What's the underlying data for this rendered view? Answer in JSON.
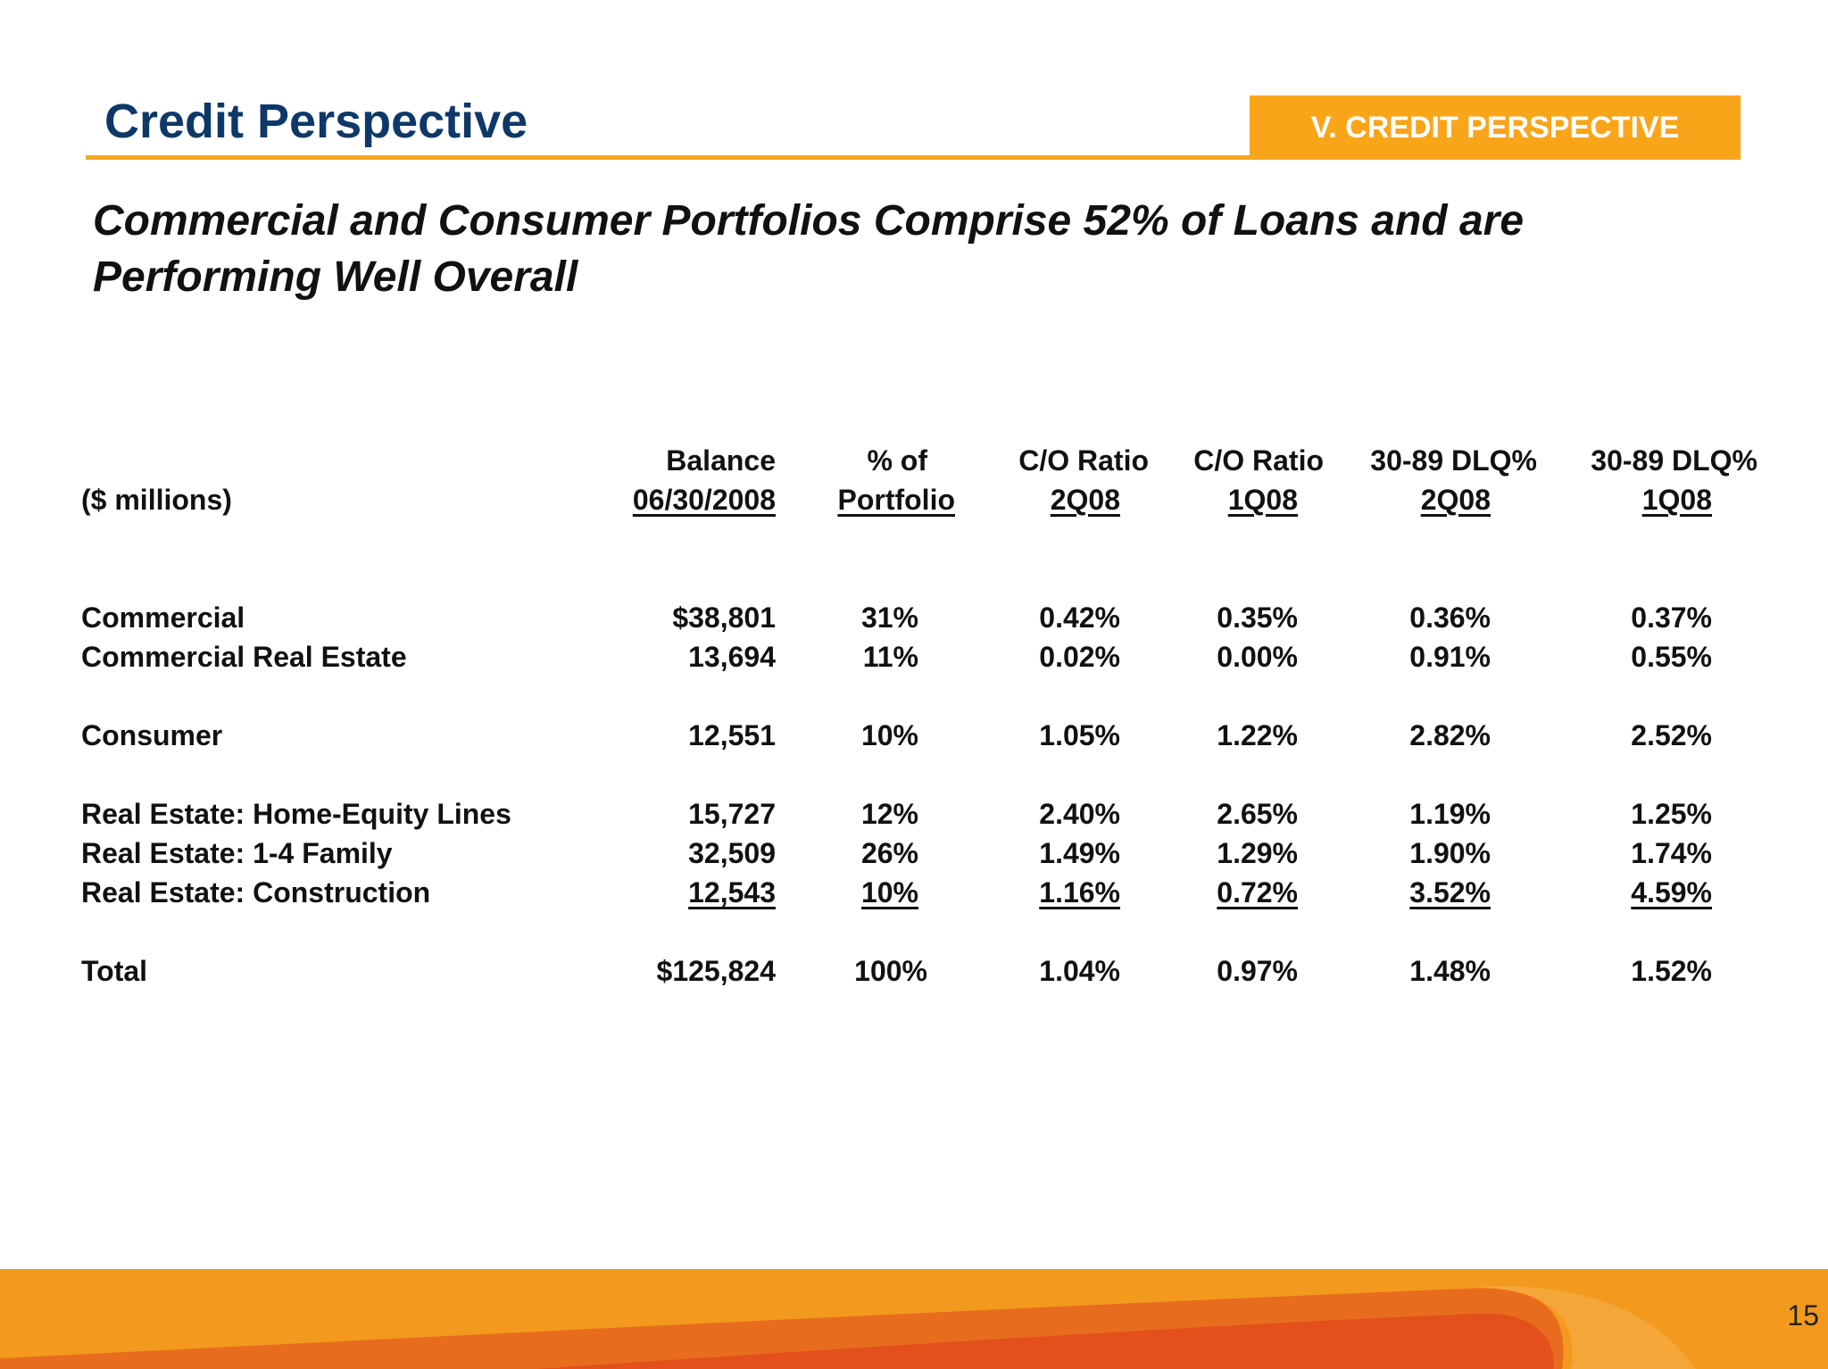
{
  "header": {
    "title": "Credit Perspective",
    "section_badge": "V. CREDIT PERSPECTIVE"
  },
  "subtitle": {
    "line1": "Commercial and Consumer Portfolios Comprise 52% of Loans and are",
    "line2": "Performing Well Overall"
  },
  "table": {
    "unit_label": "($ millions)",
    "columns": [
      {
        "top": "Balance",
        "bottom": "06/30/2008"
      },
      {
        "top": "% of",
        "bottom": "Portfolio"
      },
      {
        "top": "C/O Ratio",
        "bottom": "2Q08"
      },
      {
        "top": "C/O Ratio",
        "bottom": "1Q08"
      },
      {
        "top": "30-89 DLQ%",
        "bottom": "2Q08"
      },
      {
        "top": "30-89 DLQ%",
        "bottom": "1Q08"
      }
    ],
    "rows": [
      {
        "label": "Commercial",
        "values": [
          "$38,801",
          "31%",
          "0.42%",
          "0.35%",
          "0.36%",
          "0.37%"
        ]
      },
      {
        "label": "Commercial Real Estate",
        "values": [
          "13,694",
          "11%",
          "0.02%",
          "0.00%",
          "0.91%",
          "0.55%"
        ]
      },
      {
        "label": "Consumer",
        "values": [
          "12,551",
          "10%",
          "1.05%",
          "1.22%",
          "2.82%",
          "2.52%"
        ]
      },
      {
        "label": "Real Estate: Home-Equity Lines",
        "values": [
          "15,727",
          "12%",
          "2.40%",
          "2.65%",
          "1.19%",
          "1.25%"
        ]
      },
      {
        "label": "Real Estate: 1-4 Family",
        "values": [
          "32,509",
          "26%",
          "1.49%",
          "1.29%",
          "1.90%",
          "1.74%"
        ]
      },
      {
        "label": "Real Estate: Construction",
        "values": [
          "12,543",
          "10%",
          "1.16%",
          "0.72%",
          "3.52%",
          "4.59%"
        ]
      },
      {
        "label": "Total",
        "values": [
          "$125,824",
          "100%",
          "1.04%",
          "0.97%",
          "1.48%",
          "1.52%"
        ]
      }
    ]
  },
  "footer": {
    "page_number": "15"
  },
  "colors": {
    "title_blue": "#0e3868",
    "accent_orange": "#f9a51a",
    "footer_orange": "#f39a1e",
    "footer_red": "#e3501c"
  }
}
